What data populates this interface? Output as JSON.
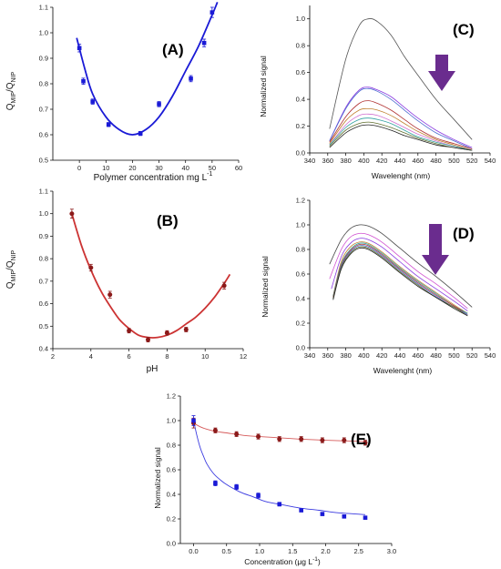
{
  "colors": {
    "blue": "#1a1ad6",
    "darkred": "#8b1a1a",
    "redline": "#d65a5a",
    "arrow": "#6a2c8e"
  },
  "chart_data": [
    {
      "id": "A",
      "type": "scatter",
      "panel_label": "(A)",
      "xlabel": "Polymer concentration mg L",
      "xlabel_sup": "-1",
      "ylabel_main": "Q",
      "ylabel_sub1": "MIP",
      "ylabel_mid": "/Q",
      "ylabel_sub2": "NIP",
      "xlim": [
        -10,
        60
      ],
      "ylim": [
        0.5,
        1.1
      ],
      "xticks": [
        0,
        10,
        20,
        30,
        40,
        50,
        60
      ],
      "xtick_labels": [
        "0",
        "10",
        "20",
        "30",
        "40",
        "50",
        "60"
      ],
      "yticks": [
        0.5,
        0.6,
        0.7,
        0.8,
        0.9,
        1.0,
        1.1
      ],
      "ytick_labels": [
        "0.5",
        "0.6",
        "0.7",
        "0.8",
        "0.9",
        "1.0",
        "1.1"
      ],
      "series": [
        {
          "x": [
            0,
            1.5,
            5,
            11,
            23,
            30,
            42,
            47,
            50
          ],
          "y": [
            0.94,
            0.81,
            0.73,
            0.64,
            0.605,
            0.72,
            0.82,
            0.96,
            1.08
          ],
          "err": [
            0.015,
            0.012,
            0.01,
            0.008,
            0.008,
            0.01,
            0.012,
            0.015,
            0.02
          ],
          "color": "#1a1ad6",
          "marker": "square"
        }
      ],
      "fit": {
        "x": [
          -1,
          2,
          5,
          10,
          15,
          20,
          25,
          30,
          35,
          40,
          45,
          50,
          52
        ],
        "y": [
          0.98,
          0.86,
          0.76,
          0.67,
          0.62,
          0.6,
          0.62,
          0.67,
          0.75,
          0.85,
          0.95,
          1.07,
          1.12
        ],
        "color": "#1a1ad6"
      }
    },
    {
      "id": "B",
      "type": "scatter",
      "panel_label": "(B)",
      "xlabel": "pH",
      "ylabel_main": "Q",
      "ylabel_sub1": "MIP",
      "ylabel_mid": "/Q",
      "ylabel_sub2": "NIP",
      "xlim": [
        2,
        12
      ],
      "ylim": [
        0.4,
        1.1
      ],
      "xticks": [
        2,
        4,
        6,
        8,
        10,
        12
      ],
      "xtick_labels": [
        "2",
        "4",
        "6",
        "8",
        "10",
        "12"
      ],
      "yticks": [
        0.4,
        0.5,
        0.6,
        0.7,
        0.8,
        0.9,
        1.0,
        1.1
      ],
      "ytick_labels": [
        "0.4",
        "0.5",
        "0.6",
        "0.7",
        "0.8",
        "0.9",
        "1.0",
        "1.1"
      ],
      "series": [
        {
          "x": [
            3,
            4,
            5,
            6,
            7,
            8,
            9,
            11
          ],
          "y": [
            1.0,
            0.76,
            0.64,
            0.48,
            0.44,
            0.47,
            0.485,
            0.68
          ],
          "err": [
            0.02,
            0.015,
            0.015,
            0.01,
            0.01,
            0.01,
            0.01,
            0.015
          ],
          "color": "#8b1a1a",
          "marker": "circle"
        }
      ],
      "fit": {
        "x": [
          3,
          3.5,
          4,
          4.5,
          5,
          5.5,
          6,
          6.5,
          7,
          7.5,
          8,
          8.5,
          9,
          9.5,
          10,
          10.5,
          11,
          11.3
        ],
        "y": [
          1.0,
          0.86,
          0.75,
          0.66,
          0.59,
          0.53,
          0.49,
          0.46,
          0.45,
          0.45,
          0.46,
          0.48,
          0.51,
          0.54,
          0.58,
          0.63,
          0.69,
          0.73
        ],
        "color": "#cc3333"
      }
    },
    {
      "id": "C",
      "type": "line",
      "panel_label": "(C)",
      "xlabel": "Wavelenght (nm)",
      "ylabel": "Normalized signal",
      "xlim": [
        340,
        540
      ],
      "ylim": [
        0,
        1.1
      ],
      "xticks": [
        340,
        360,
        380,
        400,
        420,
        440,
        460,
        480,
        500,
        520,
        540
      ],
      "xtick_labels": [
        "340",
        "360",
        "380",
        "400",
        "420",
        "440",
        "460",
        "480",
        "500",
        "520",
        "540"
      ],
      "yticks": [
        0.0,
        0.2,
        0.4,
        0.6,
        0.8,
        1.0
      ],
      "ytick_labels": [
        "0.0",
        "0.2",
        "0.4",
        "0.6",
        "0.8",
        "1.0"
      ],
      "series": [
        {
          "color": "#555555",
          "x": [
            362,
            380,
            395,
            405,
            415,
            430,
            445,
            460,
            480,
            500,
            520
          ],
          "y": [
            0.18,
            0.7,
            0.95,
            1.0,
            0.98,
            0.88,
            0.72,
            0.58,
            0.4,
            0.25,
            0.1
          ]
        },
        {
          "color": "#8a3ae0",
          "x": [
            362,
            380,
            395,
            405,
            415,
            430,
            445,
            460,
            480,
            500,
            520
          ],
          "y": [
            0.09,
            0.34,
            0.47,
            0.49,
            0.47,
            0.42,
            0.34,
            0.26,
            0.17,
            0.1,
            0.04
          ]
        },
        {
          "color": "#4a6ad0",
          "x": [
            362,
            380,
            395,
            405,
            415,
            430,
            445,
            460,
            480,
            500,
            520
          ],
          "y": [
            0.09,
            0.33,
            0.46,
            0.48,
            0.46,
            0.4,
            0.32,
            0.24,
            0.15,
            0.09,
            0.03
          ]
        },
        {
          "color": "#b03030",
          "x": [
            362,
            380,
            395,
            405,
            415,
            430,
            445,
            460,
            480,
            500,
            520
          ],
          "y": [
            0.08,
            0.27,
            0.37,
            0.39,
            0.37,
            0.32,
            0.25,
            0.18,
            0.11,
            0.07,
            0.03
          ]
        },
        {
          "color": "#c08030",
          "x": [
            362,
            380,
            395,
            405,
            415,
            430,
            445,
            460,
            480,
            500,
            520
          ],
          "y": [
            0.07,
            0.24,
            0.32,
            0.33,
            0.32,
            0.28,
            0.22,
            0.16,
            0.1,
            0.06,
            0.02
          ]
        },
        {
          "color": "#d070d0",
          "x": [
            362,
            380,
            395,
            405,
            415,
            430,
            445,
            460,
            480,
            500,
            520
          ],
          "y": [
            0.06,
            0.21,
            0.28,
            0.29,
            0.28,
            0.24,
            0.19,
            0.14,
            0.09,
            0.05,
            0.02
          ]
        },
        {
          "color": "#30a0a0",
          "x": [
            362,
            380,
            395,
            405,
            415,
            430,
            445,
            460,
            480,
            500,
            520
          ],
          "y": [
            0.06,
            0.19,
            0.25,
            0.26,
            0.25,
            0.22,
            0.17,
            0.12,
            0.08,
            0.05,
            0.02
          ]
        },
        {
          "color": "#607030",
          "x": [
            362,
            380,
            395,
            405,
            415,
            430,
            445,
            460,
            480,
            500,
            520
          ],
          "y": [
            0.05,
            0.17,
            0.22,
            0.23,
            0.22,
            0.19,
            0.15,
            0.11,
            0.07,
            0.04,
            0.02
          ]
        },
        {
          "color": "#222222",
          "x": [
            362,
            380,
            395,
            405,
            415,
            430,
            445,
            460,
            480,
            500,
            520
          ],
          "y": [
            0.04,
            0.15,
            0.2,
            0.21,
            0.2,
            0.17,
            0.13,
            0.1,
            0.06,
            0.04,
            0.02
          ]
        }
      ]
    },
    {
      "id": "D",
      "type": "line",
      "panel_label": "(D)",
      "xlabel": "Wavelenght (nm)",
      "ylabel": "Normalized signal",
      "xlim": [
        340,
        540
      ],
      "ylim": [
        0,
        1.2
      ],
      "xticks": [
        340,
        360,
        380,
        400,
        420,
        440,
        460,
        480,
        500,
        520,
        540
      ],
      "xtick_labels": [
        "340",
        "360",
        "380",
        "400",
        "420",
        "440",
        "460",
        "480",
        "500",
        "520",
        "540"
      ],
      "yticks": [
        0.0,
        0.2,
        0.4,
        0.6,
        0.8,
        1.0,
        1.2
      ],
      "ytick_labels": [
        "0.0",
        "0.2",
        "0.4",
        "0.6",
        "0.8",
        "1.0",
        "1.2"
      ],
      "series": [
        {
          "color": "#444444",
          "x": [
            362,
            375,
            385,
            395,
            405,
            420,
            440,
            460,
            480,
            500,
            520
          ],
          "y": [
            0.68,
            0.88,
            0.97,
            1.0,
            0.99,
            0.93,
            0.81,
            0.69,
            0.58,
            0.46,
            0.33
          ]
        },
        {
          "color": "#d050d0",
          "x": [
            362,
            375,
            385,
            395,
            405,
            420,
            440,
            460,
            480,
            500,
            515
          ],
          "y": [
            0.56,
            0.8,
            0.9,
            0.93,
            0.92,
            0.86,
            0.74,
            0.62,
            0.52,
            0.41,
            0.32
          ]
        },
        {
          "color": "#8a3ae0",
          "x": [
            364,
            375,
            385,
            395,
            405,
            420,
            440,
            460,
            480,
            500,
            515
          ],
          "y": [
            0.48,
            0.74,
            0.85,
            0.89,
            0.88,
            0.82,
            0.7,
            0.58,
            0.48,
            0.38,
            0.3
          ]
        },
        {
          "color": "#c08030",
          "x": [
            366,
            375,
            385,
            395,
            405,
            420,
            440,
            460,
            480,
            500,
            515
          ],
          "y": [
            0.42,
            0.7,
            0.82,
            0.86,
            0.85,
            0.78,
            0.66,
            0.55,
            0.45,
            0.35,
            0.28
          ]
        },
        {
          "color": "#30a0a0",
          "x": [
            366,
            375,
            385,
            395,
            405,
            420,
            440,
            460,
            480,
            500,
            515
          ],
          "y": [
            0.42,
            0.68,
            0.8,
            0.85,
            0.84,
            0.77,
            0.65,
            0.54,
            0.44,
            0.34,
            0.28
          ]
        },
        {
          "color": "#b03030",
          "x": [
            366,
            375,
            385,
            395,
            405,
            420,
            440,
            460,
            480,
            500,
            515
          ],
          "y": [
            0.41,
            0.67,
            0.79,
            0.84,
            0.83,
            0.76,
            0.64,
            0.53,
            0.43,
            0.34,
            0.27
          ]
        },
        {
          "color": "#4a6ad0",
          "x": [
            366,
            375,
            385,
            395,
            405,
            420,
            440,
            460,
            480,
            500,
            515
          ],
          "y": [
            0.4,
            0.66,
            0.78,
            0.83,
            0.82,
            0.75,
            0.63,
            0.52,
            0.42,
            0.33,
            0.27
          ]
        },
        {
          "color": "#607030",
          "x": [
            366,
            375,
            385,
            395,
            405,
            420,
            440,
            460,
            480,
            500,
            515
          ],
          "y": [
            0.4,
            0.65,
            0.77,
            0.82,
            0.81,
            0.74,
            0.62,
            0.51,
            0.41,
            0.33,
            0.26
          ]
        },
        {
          "color": "#222222",
          "x": [
            366,
            375,
            385,
            395,
            405,
            420,
            440,
            460,
            480,
            500,
            515
          ],
          "y": [
            0.39,
            0.64,
            0.76,
            0.81,
            0.8,
            0.73,
            0.61,
            0.5,
            0.41,
            0.32,
            0.26
          ]
        }
      ]
    },
    {
      "id": "E",
      "type": "scatter",
      "panel_label": "(E)",
      "xlabel": "Concentration (μg L",
      "xlabel_sup": "-1",
      "xlabel_end": ")",
      "ylabel": "Normalized signal",
      "xlim": [
        -0.2,
        3.0
      ],
      "ylim": [
        0,
        1.2
      ],
      "xticks": [
        0.0,
        0.5,
        1.0,
        1.5,
        2.0,
        2.5,
        3.0
      ],
      "xtick_labels": [
        "0.0",
        "0.5",
        "1.0",
        "1.5",
        "2.0",
        "2.5",
        "3.0"
      ],
      "yticks": [
        0.0,
        0.2,
        0.4,
        0.6,
        0.8,
        1.0,
        1.2
      ],
      "ytick_labels": [
        "0.0",
        "0.2",
        "0.4",
        "0.6",
        "0.8",
        "1.0",
        "1.2"
      ],
      "series": [
        {
          "color": "#8b1a1a",
          "marker": "circle",
          "x": [
            0.0,
            0.33,
            0.65,
            0.98,
            1.3,
            1.63,
            1.95,
            2.28,
            2.6
          ],
          "y": [
            0.98,
            0.92,
            0.89,
            0.87,
            0.85,
            0.85,
            0.84,
            0.84,
            0.82
          ],
          "err": [
            0.04,
            0.02,
            0.02,
            0.02,
            0.02,
            0.02,
            0.02,
            0.02,
            0.02
          ]
        },
        {
          "color": "#1a1ad6",
          "marker": "square",
          "x": [
            0.0,
            0.33,
            0.65,
            0.98,
            1.3,
            1.63,
            1.95,
            2.28,
            2.6
          ],
          "y": [
            1.0,
            0.49,
            0.46,
            0.39,
            0.32,
            0.27,
            0.24,
            0.22,
            0.21
          ],
          "err": [
            0.04,
            0.02,
            0.02,
            0.02,
            0.015,
            0.01,
            0.01,
            0.01,
            0.01
          ]
        }
      ],
      "fits": [
        {
          "color": "#d65a5a",
          "x": [
            0.0,
            0.1,
            0.2,
            0.35,
            0.5,
            0.75,
            1.0,
            1.3,
            1.6,
            2.0,
            2.3,
            2.6
          ],
          "y": [
            0.98,
            0.95,
            0.93,
            0.91,
            0.9,
            0.88,
            0.87,
            0.86,
            0.85,
            0.84,
            0.835,
            0.83
          ]
        },
        {
          "color": "#3a3ae0",
          "x": [
            0.0,
            0.05,
            0.1,
            0.15,
            0.2,
            0.3,
            0.4,
            0.5,
            0.7,
            0.9,
            1.1,
            1.3,
            1.6,
            1.9,
            2.2,
            2.6
          ],
          "y": [
            1.0,
            0.88,
            0.78,
            0.71,
            0.65,
            0.57,
            0.52,
            0.48,
            0.42,
            0.38,
            0.34,
            0.32,
            0.29,
            0.27,
            0.25,
            0.235
          ]
        }
      ]
    }
  ]
}
